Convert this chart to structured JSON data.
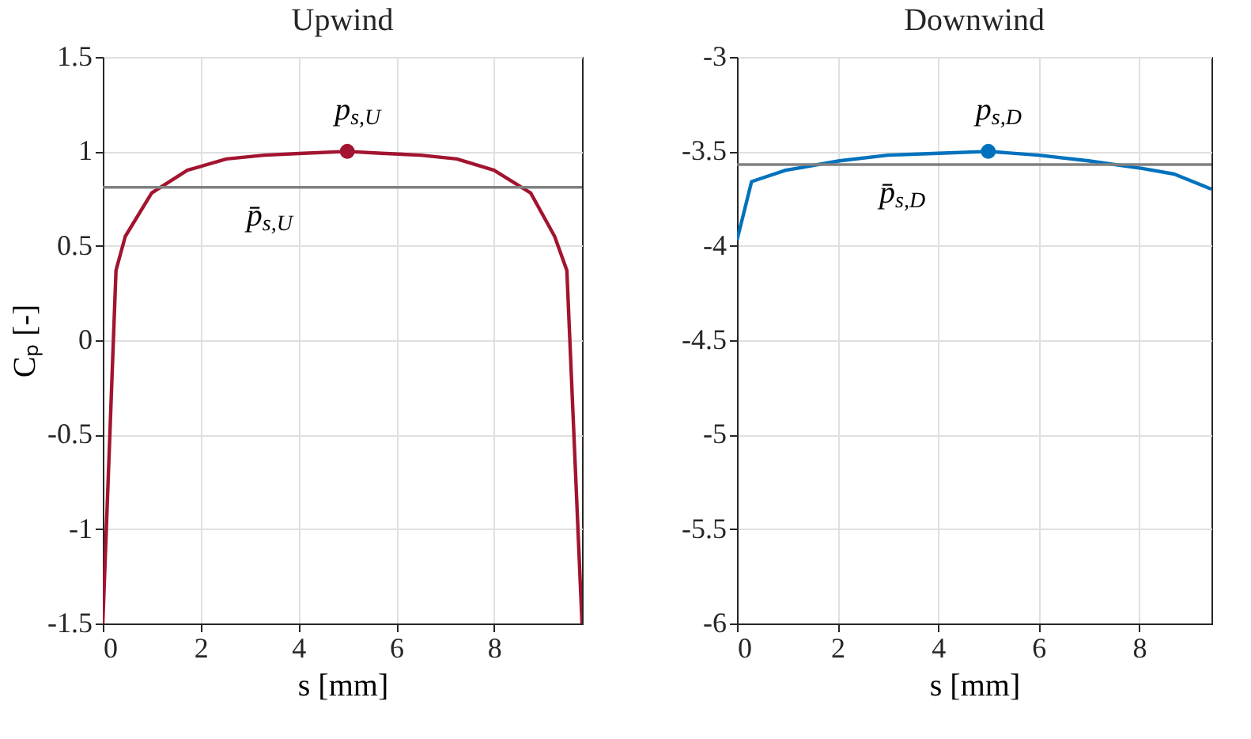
{
  "chart_data": [
    {
      "type": "line",
      "title": "Upwind",
      "xlabel": "s [mm]",
      "ylabel": "Cₚ [-]",
      "grid": true,
      "xlim": [
        0,
        9.8
      ],
      "ylim": [
        -1.5,
        1.5
      ],
      "xticks": [
        0,
        2,
        4,
        6,
        8
      ],
      "yticks": [
        -1.5,
        -1,
        -0.5,
        0,
        0.5,
        1,
        1.5
      ],
      "series": [
        {
          "color": "#a2142f",
          "marker": "none",
          "x": [
            0,
            0.27,
            0.46,
            1.0,
            1.73,
            2.53,
            3.3,
            4.1,
            5.0,
            5.7,
            6.5,
            7.24,
            8.0,
            8.75,
            9.24,
            9.49,
            9.8
          ],
          "values": [
            -1.5,
            0.37,
            0.55,
            0.78,
            0.9,
            0.96,
            0.98,
            0.99,
            1.0,
            0.99,
            0.98,
            0.96,
            0.9,
            0.78,
            0.55,
            0.37,
            -1.5
          ]
        },
        {
          "type": "scatter",
          "color": "#a2142f",
          "marker": "circle",
          "x": [
            5
          ],
          "values": [
            1
          ]
        }
      ],
      "ref_lines": [
        {
          "axis": "y",
          "value": 0.81,
          "label": "p̄$_{s,U}$",
          "color": "#808080"
        }
      ],
      "annotations": [
        {
          "text": "p$_{s,U}$",
          "x": 5,
          "y": 1
        }
      ]
    },
    {
      "type": "line",
      "title": "Downwind",
      "xlabel": "s [mm]",
      "grid": true,
      "xlim": [
        0,
        9.44
      ],
      "ylim": [
        -6,
        -3
      ],
      "xticks": [
        0,
        2,
        4,
        6,
        8
      ],
      "yticks": [
        -6,
        -5.5,
        -5,
        -4.5,
        -4,
        -3.5,
        -3
      ],
      "series": [
        {
          "color": "#0072bd",
          "marker": "none",
          "x": [
            0,
            0.29,
            0.97,
            2.04,
            3.0,
            4.0,
            5.0,
            6.0,
            6.99,
            8.06,
            8.7,
            9.44
          ],
          "values": [
            -3.97,
            -3.66,
            -3.6,
            -3.55,
            -3.52,
            -3.51,
            -3.5,
            -3.52,
            -3.55,
            -3.59,
            -3.62,
            -3.7
          ]
        },
        {
          "type": "scatter",
          "color": "#0072bd",
          "marker": "circle",
          "x": [
            5
          ],
          "values": [
            -3.5
          ]
        }
      ],
      "ref_lines": [
        {
          "axis": "y",
          "value": -3.57,
          "label": "p̄$_{s,D}$",
          "color": "#808080"
        }
      ],
      "annotations": [
        {
          "text": "p$_{s,D}$",
          "x": 5,
          "y": -3.5
        }
      ]
    }
  ]
}
